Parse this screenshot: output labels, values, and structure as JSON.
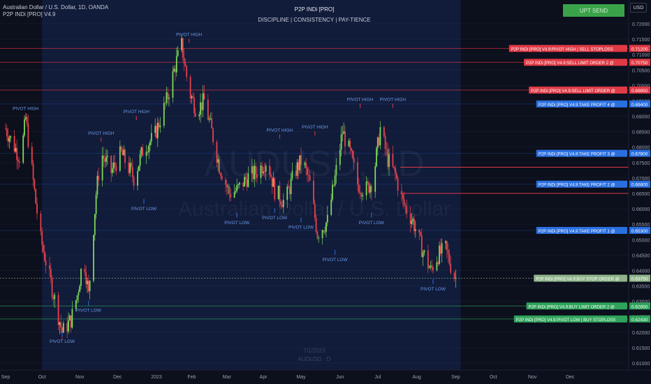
{
  "header": {
    "symbol_title": "Australian Dollar / U.S. Dollar, 1D, OANDA",
    "indicator_name": "P2P INDi [PRO] V4.9",
    "brand_title": "P2P INDi [PRO]",
    "brand_tagline": "DISCIPLINE  |  CONSISTENCY  |  PAY-TIENCE"
  },
  "watermark": {
    "symbol": "AUDUSD, 1D",
    "name": "Australian Dollar / U.S. Dollar"
  },
  "center_marks": {
    "date": "7/1/2023",
    "sub": "AUDUSD · D"
  },
  "toolbar": {
    "upt_send_label": "UPT SEND",
    "currency_label": "USD"
  },
  "colors": {
    "background": "#0c0f1c",
    "highlight_band": "#111b3a",
    "candle_up": "#7ed957",
    "candle_down": "#e8424d",
    "sell_red": "#e03a45",
    "take_profit_blue": "#2a6fe0",
    "buy_green": "#2fa35a",
    "buy_stop_green": "#8fb58a"
  },
  "chart_data": {
    "type": "candlestick",
    "title": "",
    "xlabel": "",
    "ylabel": "",
    "ylim": [
      0.6055,
      0.7255
    ],
    "x_ticks": [
      "Sep",
      "Oct",
      "Nov",
      "Dec",
      "2023",
      "Feb",
      "Mar",
      "Apr",
      "May",
      "Jun",
      "Jul",
      "Aug",
      "Sep",
      "Oct",
      "Nov",
      "Dec"
    ],
    "x_tick_days": [
      0,
      29,
      59,
      89,
      120,
      148,
      176,
      205,
      235,
      266,
      296,
      327,
      358,
      388,
      419,
      449
    ],
    "y_ticks": [
      "0.72000",
      "0.71500",
      "0.71000",
      "0.70500",
      "0.70000",
      "0.69500",
      "0.69000",
      "0.68500",
      "0.68000",
      "0.67500",
      "0.67000",
      "0.66500",
      "0.66000",
      "0.65500",
      "0.65000",
      "0.64500",
      "0.64000",
      "0.63500",
      "0.63000",
      "0.62500",
      "0.62000",
      "0.61500",
      "0.61000"
    ],
    "highlight_range": [
      "2022-09-29",
      "2023-09-05"
    ],
    "anchor_points": [
      {
        "d": 0,
        "p": 0.686
      },
      {
        "d": 12,
        "p": 0.676
      },
      {
        "d": 16,
        "p": 0.6895
      },
      {
        "d": 24,
        "p": 0.662
      },
      {
        "d": 28,
        "p": 0.65
      },
      {
        "d": 36,
        "p": 0.636
      },
      {
        "d": 45,
        "p": 0.62
      },
      {
        "d": 52,
        "p": 0.624
      },
      {
        "d": 57,
        "p": 0.632
      },
      {
        "d": 62,
        "p": 0.645
      },
      {
        "d": 66,
        "p": 0.632
      },
      {
        "d": 72,
        "p": 0.665
      },
      {
        "d": 76,
        "p": 0.678
      },
      {
        "d": 84,
        "p": 0.672
      },
      {
        "d": 92,
        "p": 0.678
      },
      {
        "d": 102,
        "p": 0.67
      },
      {
        "d": 110,
        "p": 0.68
      },
      {
        "d": 118,
        "p": 0.683
      },
      {
        "d": 128,
        "p": 0.695
      },
      {
        "d": 136,
        "p": 0.708
      },
      {
        "d": 140,
        "p": 0.713
      },
      {
        "d": 146,
        "p": 0.698
      },
      {
        "d": 152,
        "p": 0.692
      },
      {
        "d": 158,
        "p": 0.695
      },
      {
        "d": 164,
        "p": 0.685
      },
      {
        "d": 170,
        "p": 0.674
      },
      {
        "d": 178,
        "p": 0.665
      },
      {
        "d": 184,
        "p": 0.666
      },
      {
        "d": 192,
        "p": 0.67
      },
      {
        "d": 200,
        "p": 0.672
      },
      {
        "d": 208,
        "p": 0.676
      },
      {
        "d": 214,
        "p": 0.666
      },
      {
        "d": 222,
        "p": 0.662
      },
      {
        "d": 230,
        "p": 0.672
      },
      {
        "d": 236,
        "p": 0.676
      },
      {
        "d": 242,
        "p": 0.668
      },
      {
        "d": 248,
        "p": 0.652
      },
      {
        "d": 256,
        "p": 0.656
      },
      {
        "d": 262,
        "p": 0.67
      },
      {
        "d": 268,
        "p": 0.685
      },
      {
        "d": 274,
        "p": 0.678
      },
      {
        "d": 280,
        "p": 0.668
      },
      {
        "d": 286,
        "p": 0.666
      },
      {
        "d": 292,
        "p": 0.669
      },
      {
        "d": 298,
        "p": 0.686
      },
      {
        "d": 304,
        "p": 0.676
      },
      {
        "d": 310,
        "p": 0.671
      },
      {
        "d": 316,
        "p": 0.662
      },
      {
        "d": 324,
        "p": 0.656
      },
      {
        "d": 332,
        "p": 0.646
      },
      {
        "d": 338,
        "p": 0.64
      },
      {
        "d": 344,
        "p": 0.645
      },
      {
        "d": 350,
        "p": 0.647
      },
      {
        "d": 356,
        "p": 0.639
      },
      {
        "d": 358,
        "p": 0.6375
      }
    ],
    "levels": [
      {
        "label": "P2P INDi [PRO] V4.9:PIVOT HIGH | SELL STOPLOSS",
        "value_text": "0.71200",
        "price": 0.712,
        "kind": "sell"
      },
      {
        "label": "P2P INDi [PRO] V4.9:SELL LIMIT ORDER 2 @",
        "value_text": "0.70750",
        "price": 0.7075,
        "kind": "sell"
      },
      {
        "label": "P2P INDi [PRO] V4.9:SELL LIMIT ORDER @",
        "value_text": "0.69850",
        "price": 0.6985,
        "kind": "sell"
      },
      {
        "label": "P2P INDi [PRO] V4.9:TAKE PROFIT 4 @",
        "value_text": "0.69400",
        "price": 0.694,
        "kind": "tp"
      },
      {
        "label": "P2P INDi [PRO] V4.9:TAKE PROFIT 3 @",
        "value_text": "0.67800",
        "price": 0.678,
        "kind": "tp"
      },
      {
        "label": "P2P INDi [PRO] V4.9:TAKE PROFIT 2 @",
        "value_text": "0.66800",
        "price": 0.668,
        "kind": "tp"
      },
      {
        "label": "P2P INDi [PRO] V4.9:TAKE PROFIT 1 @",
        "value_text": "0.65300",
        "price": 0.653,
        "kind": "tp"
      },
      {
        "label": "P2P INDi [PRO] V4.9:BUY STOP ORDER @",
        "value_text": "0.63750",
        "price": 0.6375,
        "kind": "buystop"
      },
      {
        "label": "P2P INDi [PRO] V4.9:BUY LIMIT ORDER 2 @",
        "value_text": "0.62850",
        "price": 0.6285,
        "kind": "buy"
      },
      {
        "label": "P2P INDi [PRO] V4.9:PIVOT LOW | BUY STOPLOSS",
        "value_text": "0.62430",
        "price": 0.6243,
        "kind": "buy"
      }
    ],
    "short_levels": [
      {
        "price": 0.6735,
        "from_day": 314,
        "kind": "sell"
      },
      {
        "price": 0.665,
        "from_day": 314,
        "kind": "sell"
      }
    ],
    "pivots": [
      {
        "label": "PIVOT HIGH",
        "day": 16,
        "price": 0.692,
        "type": "high"
      },
      {
        "label": "PIVOT LOW",
        "day": 45,
        "price": 0.6175,
        "type": "low"
      },
      {
        "label": "PIVOT LOW",
        "day": 66,
        "price": 0.6275,
        "type": "low"
      },
      {
        "label": "PIVOT HIGH",
        "day": 76,
        "price": 0.684,
        "type": "high"
      },
      {
        "label": "PIVOT HIGH",
        "day": 104,
        "price": 0.691,
        "type": "high"
      },
      {
        "label": "PIVOT LOW",
        "day": 110,
        "price": 0.6605,
        "type": "low"
      },
      {
        "label": "PIVOT HIGH",
        "day": 146,
        "price": 0.716,
        "type": "high"
      },
      {
        "label": "PIVOT LOW",
        "day": 184,
        "price": 0.656,
        "type": "low"
      },
      {
        "label": "PIVOT LOW",
        "day": 214,
        "price": 0.6575,
        "type": "low"
      },
      {
        "label": "PIVOT HIGH",
        "day": 218,
        "price": 0.685,
        "type": "high"
      },
      {
        "label": "PIVOT HIGH",
        "day": 246,
        "price": 0.686,
        "type": "high"
      },
      {
        "label": "PIVOT LOW",
        "day": 235,
        "price": 0.6545,
        "type": "low"
      },
      {
        "label": "PIVOT LOW",
        "day": 262,
        "price": 0.644,
        "type": "low"
      },
      {
        "label": "PIVOT HIGH",
        "day": 282,
        "price": 0.695,
        "type": "high"
      },
      {
        "label": "PIVOT LOW",
        "day": 291,
        "price": 0.656,
        "type": "low"
      },
      {
        "label": "PIVOT HIGH",
        "day": 308,
        "price": 0.695,
        "type": "high"
      },
      {
        "label": "PIVOT LOW",
        "day": 340,
        "price": 0.6345,
        "type": "low"
      }
    ]
  }
}
